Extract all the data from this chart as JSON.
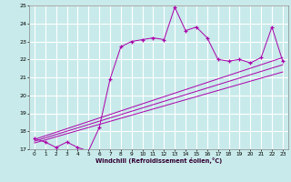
{
  "title": "",
  "xlabel": "Windchill (Refroidissement éolien,°C)",
  "bg_color": "#c8eaea",
  "grid_color": "#ffffff",
  "line_color": "#aa00aa",
  "xlim": [
    -0.5,
    23.5
  ],
  "ylim": [
    17,
    25
  ],
  "yticks": [
    17,
    18,
    19,
    20,
    21,
    22,
    23,
    24,
    25
  ],
  "xticks": [
    0,
    1,
    2,
    3,
    4,
    5,
    6,
    7,
    8,
    9,
    10,
    11,
    12,
    13,
    14,
    15,
    16,
    17,
    18,
    19,
    20,
    21,
    22,
    23
  ],
  "main_x": [
    0,
    1,
    2,
    3,
    4,
    5,
    6,
    7,
    8,
    9,
    10,
    11,
    12,
    13,
    14,
    15,
    16,
    17,
    18,
    19,
    20,
    21,
    22,
    23
  ],
  "main_y": [
    17.6,
    17.4,
    17.1,
    17.4,
    17.1,
    16.9,
    18.2,
    20.9,
    22.7,
    23.0,
    23.1,
    23.2,
    23.1,
    24.9,
    23.6,
    23.8,
    23.2,
    22.0,
    21.9,
    22.0,
    21.8,
    22.1,
    23.8,
    21.9
  ],
  "reg_lines": [
    {
      "x": [
        0,
        23
      ],
      "y": [
        17.55,
        22.1
      ]
    },
    {
      "x": [
        0,
        23
      ],
      "y": [
        17.45,
        21.7
      ]
    },
    {
      "x": [
        0,
        23
      ],
      "y": [
        17.35,
        21.3
      ]
    }
  ]
}
